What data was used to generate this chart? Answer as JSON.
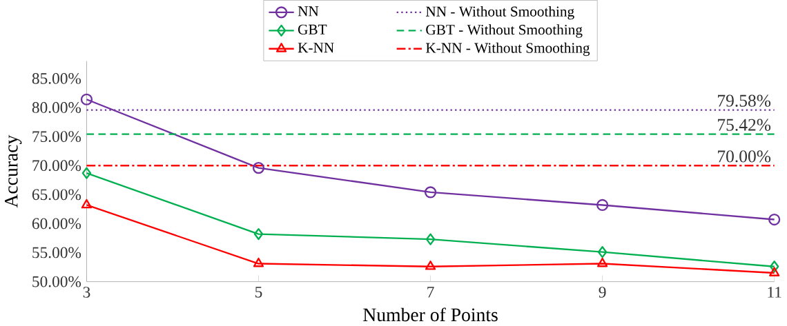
{
  "chart_data": {
    "type": "line",
    "xlabel": "Number of Points",
    "ylabel": "Accuracy",
    "x": [
      3,
      5,
      7,
      9,
      11
    ],
    "xlim": [
      3,
      11
    ],
    "xticks": [
      3,
      5,
      7,
      9,
      11
    ],
    "ylim": [
      50,
      88
    ],
    "yticks": [
      {
        "value": 50,
        "label": "50.00%"
      },
      {
        "value": 55,
        "label": "55.00%"
      },
      {
        "value": 60,
        "label": "60.00%"
      },
      {
        "value": 65,
        "label": "65.00%"
      },
      {
        "value": 70,
        "label": "70.00%"
      },
      {
        "value": 75,
        "label": "75.00%"
      },
      {
        "value": 80,
        "label": "80.00%"
      },
      {
        "value": 85,
        "label": "85.00%"
      }
    ],
    "grid": false,
    "legend": "top",
    "series": [
      {
        "name": "NN",
        "color": "#7030a0",
        "marker": "circle",
        "line_style": "solid",
        "values": [
          81.4,
          69.6,
          65.4,
          63.2,
          60.7
        ]
      },
      {
        "name": "NN - Without Smoothing",
        "color": "#7030a0",
        "marker": "none",
        "line_style": "dotted",
        "values": [
          79.58,
          79.58,
          79.58,
          79.58,
          79.58
        ]
      },
      {
        "name": "GBT",
        "color": "#00b050",
        "marker": "diamond",
        "line_style": "solid",
        "values": [
          68.7,
          58.2,
          57.3,
          55.1,
          52.6
        ]
      },
      {
        "name": "GBT - Without Smoothing",
        "color": "#00b050",
        "marker": "none",
        "line_style": "dashed",
        "values": [
          75.42,
          75.42,
          75.42,
          75.42,
          75.42
        ]
      },
      {
        "name": "K-NN",
        "color": "#ff0000",
        "marker": "triangle",
        "line_style": "solid",
        "values": [
          63.2,
          53.1,
          52.6,
          53.1,
          51.5
        ]
      },
      {
        "name": "K-NN - Without Smoothing",
        "color": "#ff0000",
        "marker": "none",
        "line_style": "dashdot",
        "values": [
          70.0,
          70.0,
          70.0,
          70.0,
          70.0
        ]
      }
    ],
    "annotations": [
      {
        "text": "79.58%",
        "y": 79.58
      },
      {
        "text": "75.42%",
        "y": 75.42
      },
      {
        "text": "70.00%",
        "y": 70.0
      }
    ]
  }
}
